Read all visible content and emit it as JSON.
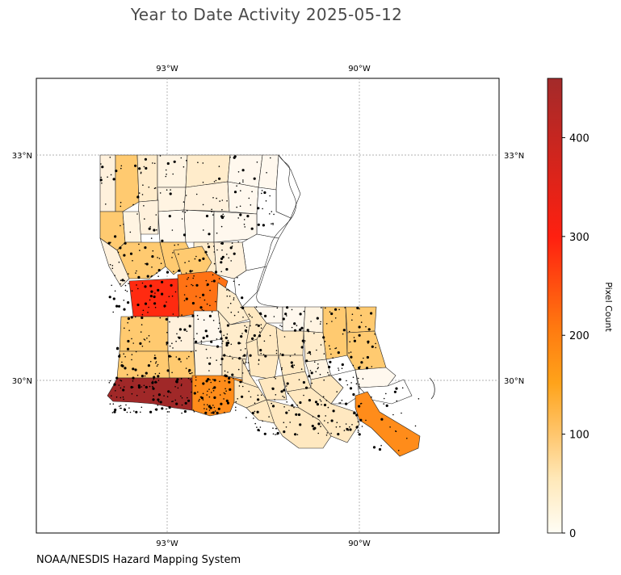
{
  "title": "Year to Date Activity 2025-05-12",
  "footer": "NOAA/NESDIS Hazard Mapping System",
  "axes": {
    "lon_ticks": [
      "93°W",
      "90°W"
    ],
    "lat_ticks": [
      "33°N",
      "30°N"
    ]
  },
  "colorbar": {
    "label": "Pixel Count",
    "ticks": [
      "0",
      "100",
      "200",
      "300",
      "400"
    ],
    "range": [
      0,
      460
    ],
    "colors": [
      "#fffdf5",
      "#ffe8b8",
      "#ffc56b",
      "#ffa31a",
      "#ff7a10",
      "#ff2010",
      "#a32a2a"
    ]
  },
  "map": {
    "state": "Louisiana",
    "grid": true,
    "colors": {
      "very_low": "#fff8ee",
      "low": "#ffe8c0",
      "mid": "#ffca70",
      "midhigh": "#ffb347",
      "orange": "#ff8c1a",
      "deep_orange": "#ff7214",
      "red": "#ff2a10",
      "dark_red": "#a02828"
    }
  }
}
